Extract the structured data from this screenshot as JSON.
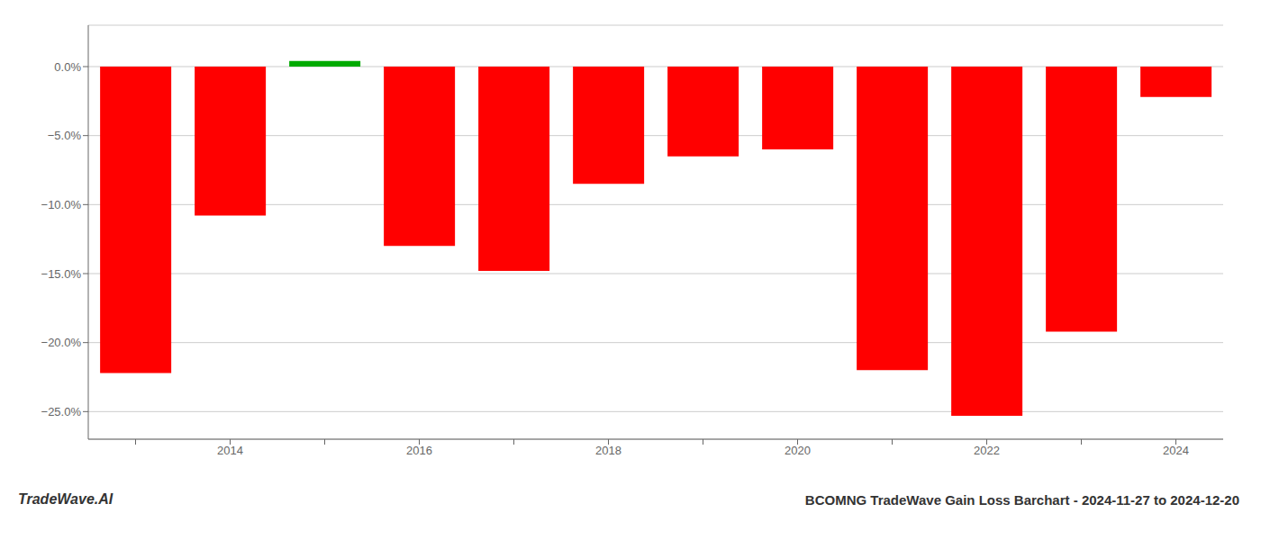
{
  "chart_data": {
    "type": "bar",
    "title": "BCOMNG TradeWave Gain Loss Barchart - 2024-11-27 to 2024-12-20",
    "annotations": [
      "TradeWave.AI"
    ],
    "categories": [
      null,
      "2014",
      null,
      "2016",
      null,
      "2018",
      null,
      "2020",
      null,
      "2022",
      null,
      "2024"
    ],
    "values": [
      -0.222,
      -0.108,
      0.004,
      -0.13,
      -0.148,
      -0.085,
      -0.065,
      -0.06,
      -0.22,
      -0.253,
      -0.192,
      -0.022
    ],
    "colors": [
      "#ff0000",
      "#ff0000",
      "#00aa00",
      "#ff0000",
      "#ff0000",
      "#ff0000",
      "#ff0000",
      "#ff0000",
      "#ff0000",
      "#ff0000",
      "#ff0000",
      "#ff0000"
    ],
    "ylim": [
      -0.27,
      0.03
    ],
    "yticks": [
      {
        "value": -0.25,
        "label": "−25.0%"
      },
      {
        "value": -0.2,
        "label": "−20.0%"
      },
      {
        "value": -0.15,
        "label": "−15.0%"
      },
      {
        "value": -0.1,
        "label": "−10.0%"
      },
      {
        "value": -0.05,
        "label": "−5.0%"
      },
      {
        "value": 0,
        "label": "0.0%"
      }
    ],
    "grid": true
  }
}
